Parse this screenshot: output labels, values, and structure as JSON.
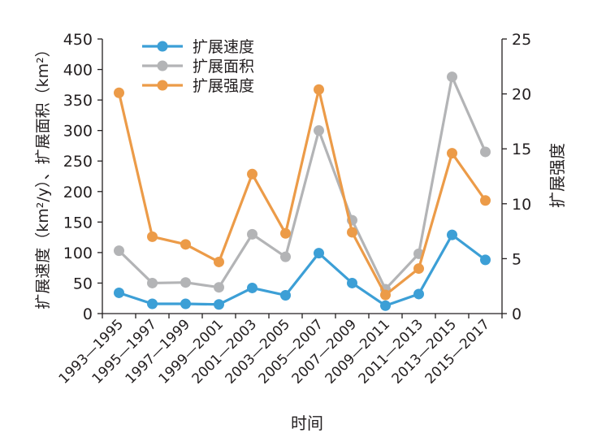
{
  "chart_data": {
    "type": "line",
    "categories": [
      "1993—1995",
      "1995—1997",
      "1997—1999",
      "1999—2001",
      "2001—2003",
      "2003—2005",
      "2005—2007",
      "2007—2009",
      "2009—2011",
      "2011—2013",
      "2013—2015",
      "2015—2017"
    ],
    "series": [
      {
        "name": "扩展速度",
        "axis": "left",
        "color": "#3c9fd6",
        "values": [
          34,
          16,
          16,
          15,
          42,
          30,
          99,
          50,
          13,
          32,
          129,
          88
        ]
      },
      {
        "name": "扩展面积",
        "axis": "left",
        "color": "#b3b4b6",
        "values": [
          103,
          50,
          51,
          43,
          130,
          93,
          300,
          153,
          40,
          98,
          388,
          265
        ]
      },
      {
        "name": "扩展强度",
        "axis": "right",
        "color": "#ec9b48",
        "values": [
          20.1,
          7.0,
          6.3,
          4.7,
          12.7,
          7.3,
          20.4,
          7.4,
          1.7,
          4.1,
          14.6,
          10.3
        ]
      }
    ],
    "xlabel": "时间",
    "ylabel_left": "扩展速度（km²/y）、扩展面积（km²）",
    "ylabel_right": "扩展强度",
    "ylim_left": [
      0,
      450
    ],
    "ylim_right": [
      0,
      25
    ],
    "yticks_left": [
      "0",
      "50",
      "100",
      "150",
      "200",
      "250",
      "300",
      "350",
      "400",
      "450"
    ],
    "yticks_right": [
      "0",
      "5",
      "10",
      "15",
      "20",
      "25"
    ],
    "grid": false,
    "legend_position": "top-left"
  }
}
